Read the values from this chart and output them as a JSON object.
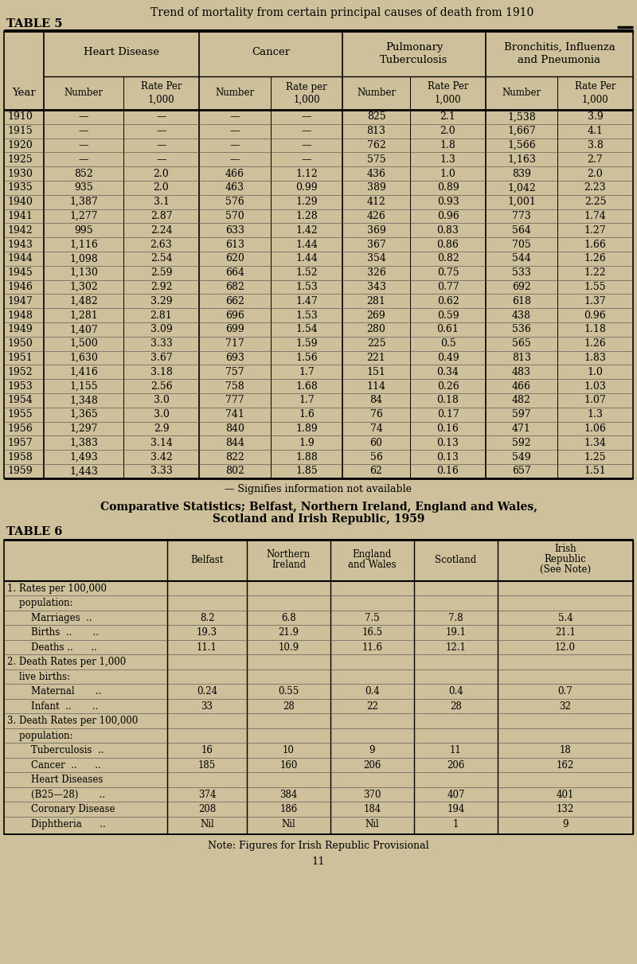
{
  "page_title": "Trend of mortality from certain principal causes of death from 1910",
  "table5_label": "TABLE 5",
  "table5_note": "— Signifies information not available",
  "table5_rows": [
    [
      "1910",
      "—",
      "—",
      "—",
      "—",
      "825",
      "2.1",
      "1,538",
      "3.9"
    ],
    [
      "1915",
      "—",
      "—",
      "—",
      "—",
      "813",
      "2.0",
      "1,667",
      "4.1"
    ],
    [
      "1920",
      "—",
      "—",
      "—",
      "—",
      "762",
      "1.8",
      "1,566",
      "3.8"
    ],
    [
      "1925",
      "—",
      "—",
      "—",
      "—",
      "575",
      "1.3",
      "1,163",
      "2.7"
    ],
    [
      "1930",
      "852",
      "2.0",
      "466",
      "1.12",
      "436",
      "1.0",
      "839",
      "2.0"
    ],
    [
      "1935",
      "935",
      "2.0",
      "463",
      "0.99",
      "389",
      "0.89",
      "1,042",
      "2.23"
    ],
    [
      "1940",
      "1,387",
      "3.1",
      "576",
      "1.29",
      "412",
      "0.93",
      "1,001",
      "2.25"
    ],
    [
      "1941",
      "1,277",
      "2.87",
      "570",
      "1.28",
      "426",
      "0.96",
      "773",
      "1.74"
    ],
    [
      "1942",
      "995",
      "2.24",
      "633",
      "1.42",
      "369",
      "0.83",
      "564",
      "1.27"
    ],
    [
      "1943",
      "1,116",
      "2.63",
      "613",
      "1.44",
      "367",
      "0.86",
      "705",
      "1.66"
    ],
    [
      "1944",
      "1,098",
      "2.54",
      "620",
      "1.44",
      "354",
      "0.82",
      "544",
      "1.26"
    ],
    [
      "1945",
      "1,130",
      "2.59",
      "664",
      "1.52",
      "326",
      "0.75",
      "533",
      "1.22"
    ],
    [
      "1946",
      "1,302",
      "2.92",
      "682",
      "1.53",
      "343",
      "0.77",
      "692",
      "1.55"
    ],
    [
      "1947",
      "1,482",
      "3.29",
      "662",
      "1.47",
      "281",
      "0.62",
      "618",
      "1.37"
    ],
    [
      "1948",
      "1,281",
      "2.81",
      "696",
      "1.53",
      "269",
      "0.59",
      "438",
      "0.96"
    ],
    [
      "1949",
      "1,407",
      "3.09",
      "699",
      "1.54",
      "280",
      "0.61",
      "536",
      "1.18"
    ],
    [
      "1950",
      "1,500",
      "3.33",
      "717",
      "1.59",
      "225",
      "0.5",
      "565",
      "1.26"
    ],
    [
      "1951",
      "1,630",
      "3.67",
      "693",
      "1.56",
      "221",
      "0.49",
      "813",
      "1.83"
    ],
    [
      "1952",
      "1,416",
      "3.18",
      "757",
      "1.7",
      "151",
      "0.34",
      "483",
      "1.0"
    ],
    [
      "1953",
      "1,155",
      "2.56",
      "758",
      "1.68",
      "114",
      "0.26",
      "466",
      "1.03"
    ],
    [
      "1954",
      "1,348",
      "3.0",
      "777",
      "1.7",
      "84",
      "0.18",
      "482",
      "1.07"
    ],
    [
      "1955",
      "1,365",
      "3.0",
      "741",
      "1.6",
      "76",
      "0.17",
      "597",
      "1.3"
    ],
    [
      "1956",
      "1,297",
      "2.9",
      "840",
      "1.89",
      "74",
      "0.16",
      "471",
      "1.06"
    ],
    [
      "1957",
      "1,383",
      "3.14",
      "844",
      "1.9",
      "60",
      "0.13",
      "592",
      "1.34"
    ],
    [
      "1958",
      "1,493",
      "3.42",
      "822",
      "1.88",
      "56",
      "0.13",
      "549",
      "1.25"
    ],
    [
      "1959",
      "1,443",
      "3.33",
      "802",
      "1.85",
      "62",
      "0.16",
      "657",
      "1.51"
    ]
  ],
  "table6_title_line1": "Comparative Statistics; Belfast, Northern Ireland, England and Wales,",
  "table6_title_line2": "Scotland and Irish Republic, 1959",
  "table6_label": "TABLE 6",
  "table6_col_labels": [
    "Belfast",
    "Northern\nIreland",
    "England\nand Wales",
    "Scotland",
    "Irish\nRepublic\n(See Note)"
  ],
  "table6_rows": [
    [
      "1. Rates per 100,000",
      "",
      "",
      "",
      "",
      ""
    ],
    [
      "    population:",
      "",
      "",
      "",
      "",
      ""
    ],
    [
      "        Marriages  ..",
      "8.2",
      "6.8",
      "7.5",
      "7.8",
      "5.4"
    ],
    [
      "        Births  ..       ..",
      "19.3",
      "21.9",
      "16.5",
      "19.1",
      "21.1"
    ],
    [
      "        Deaths ..      ..",
      "11.1",
      "10.9",
      "11.6",
      "12.1",
      "12.0"
    ],
    [
      "2. Death Rates per 1,000",
      "",
      "",
      "",
      "",
      ""
    ],
    [
      "    live births:",
      "",
      "",
      "",
      "",
      ""
    ],
    [
      "        Maternal       ..",
      "0.24",
      "0.55",
      "0.4",
      "0.4",
      "0.7"
    ],
    [
      "        Infant  ..       ..",
      "33",
      "28",
      "22",
      "28",
      "32"
    ],
    [
      "3. Death Rates per 100,000",
      "",
      "",
      "",
      "",
      ""
    ],
    [
      "    population:",
      "",
      "",
      "",
      "",
      ""
    ],
    [
      "        Tuberculosis  ..",
      "16",
      "10",
      "9",
      "11",
      "18"
    ],
    [
      "        Cancer  ..      ..",
      "185",
      "160",
      "206",
      "206",
      "162"
    ],
    [
      "        Heart Diseases",
      "",
      "",
      "",
      "",
      ""
    ],
    [
      "        (B25—28)       ..",
      "374",
      "384",
      "370",
      "407",
      "401"
    ],
    [
      "        Coronary Disease",
      "208",
      "186",
      "184",
      "194",
      "132"
    ],
    [
      "        Diphtheria      ..",
      "Nil",
      "Nil",
      "Nil",
      "1",
      "9"
    ]
  ],
  "table6_note": "Note: Figures for Irish Republic Provisional",
  "page_number": "11",
  "bg_color": "#cdc09a",
  "table_bg": "#cdc09a",
  "border_color": "#000000"
}
